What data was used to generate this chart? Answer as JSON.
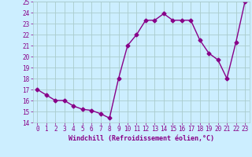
{
  "x": [
    0,
    1,
    2,
    3,
    4,
    5,
    6,
    7,
    8,
    9,
    10,
    11,
    12,
    13,
    14,
    15,
    16,
    17,
    18,
    19,
    20,
    21,
    22,
    23
  ],
  "y": [
    17.0,
    16.5,
    16.0,
    16.0,
    15.5,
    15.2,
    15.1,
    14.8,
    14.4,
    18.0,
    21.0,
    22.0,
    23.3,
    23.3,
    23.9,
    23.3,
    23.3,
    23.3,
    21.5,
    20.3,
    19.7,
    18.0,
    21.3,
    25.0
  ],
  "line_color": "#880088",
  "marker": "D",
  "marker_size": 2.5,
  "bg_color": "#cceeff",
  "grid_color": "#aacccc",
  "xlabel": "Windchill (Refroidissement éolien,°C)",
  "xlabel_color": "#880088",
  "tick_color": "#880088",
  "ylim": [
    14,
    25
  ],
  "xlim_min": -0.5,
  "xlim_max": 23.5,
  "yticks": [
    14,
    15,
    16,
    17,
    18,
    19,
    20,
    21,
    22,
    23,
    24,
    25
  ],
  "xticks": [
    0,
    1,
    2,
    3,
    4,
    5,
    6,
    7,
    8,
    9,
    10,
    11,
    12,
    13,
    14,
    15,
    16,
    17,
    18,
    19,
    20,
    21,
    22,
    23
  ],
  "tick_fontsize": 5.5,
  "xlabel_fontsize": 6.0,
  "linewidth": 1.0
}
